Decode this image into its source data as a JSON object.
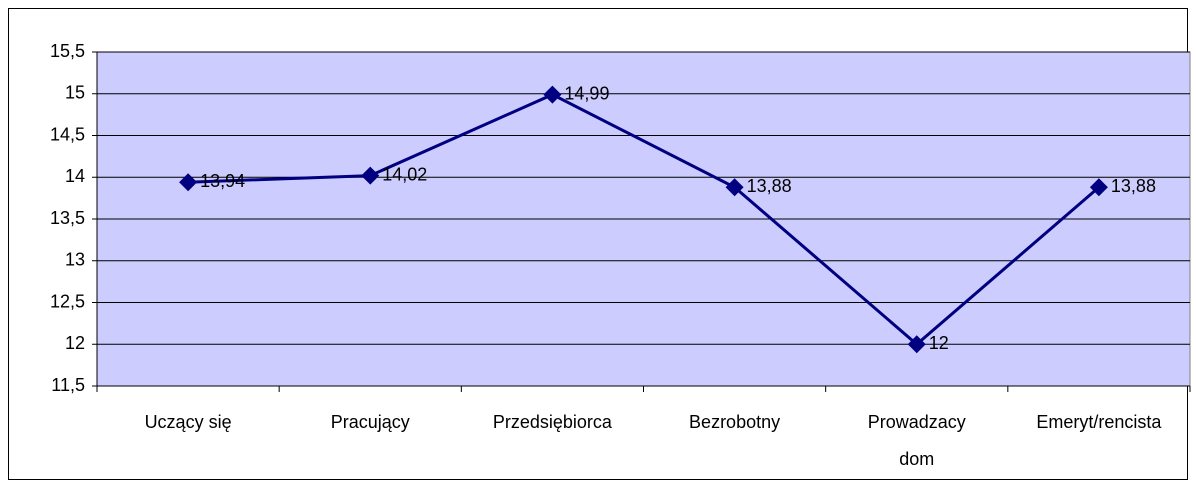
{
  "chart_data": {
    "type": "line",
    "categories": [
      "Uczący się",
      "Pracujący",
      "Przedsiębiorca",
      "Bezrobotny",
      "Prowadzacy dom",
      "Emeryt/rencista"
    ],
    "series": [
      {
        "name": null,
        "color": "#000080",
        "values": [
          13.94,
          14.02,
          14.99,
          13.88,
          12,
          13.88
        ],
        "value_labels": [
          "13,94",
          "14,02",
          "14,99",
          "13,88",
          "12",
          "13,88"
        ]
      }
    ],
    "ylim": [
      11.5,
      15.5
    ],
    "yticks": [
      {
        "value": 11.5,
        "label": "11,5"
      },
      12,
      {
        "value": 12.5,
        "label": "12,5"
      },
      13,
      {
        "value": 13.5,
        "label": "13,5"
      },
      14,
      {
        "value": 14.5,
        "label": "14,5"
      },
      15,
      {
        "value": 15.5,
        "label": "15,5"
      }
    ],
    "grid": true,
    "background": "#ccccff"
  }
}
